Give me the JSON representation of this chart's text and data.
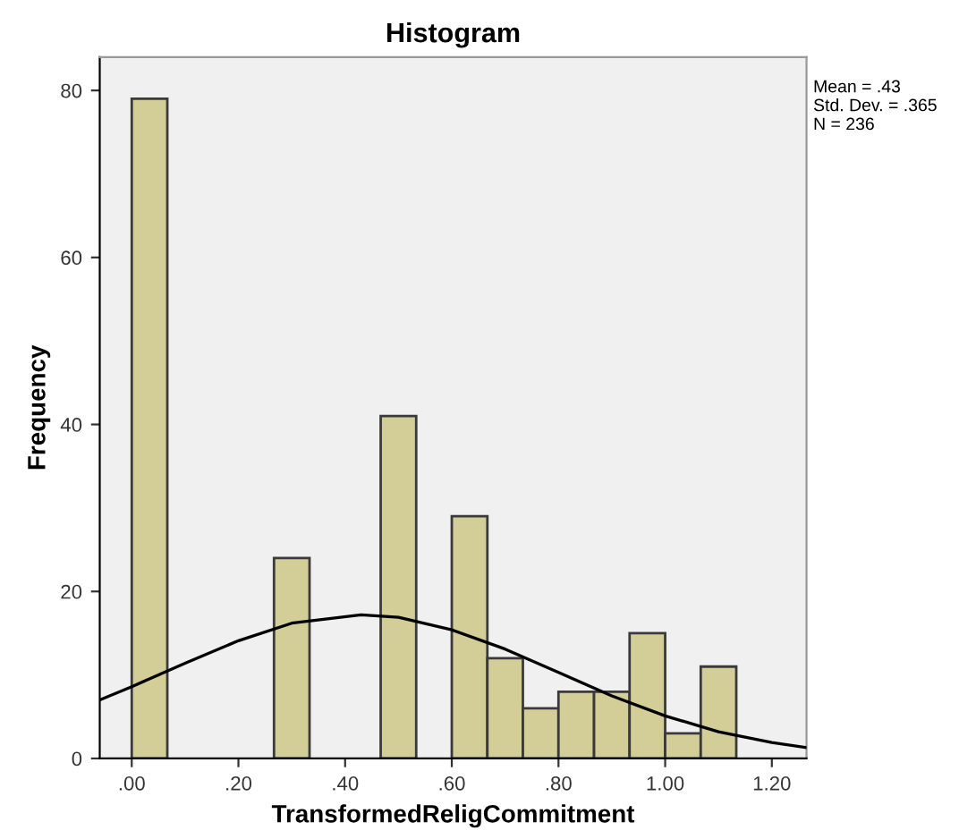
{
  "chart_data": {
    "type": "histogram",
    "title": "Histogram",
    "xlabel": "TransformedReligCommitment",
    "ylabel": "Frequency",
    "bins": [
      0,
      0.0667,
      0.1333,
      0.2,
      0.2667,
      0.3333,
      0.4,
      0.4667,
      0.5333,
      0.6,
      0.6667,
      0.7333,
      0.8,
      0.8667,
      0.9333,
      1.0,
      1.0667,
      1.1333
    ],
    "values": [
      79,
      0,
      0,
      0,
      24,
      0,
      0,
      41,
      0,
      29,
      12,
      6,
      8,
      8,
      15,
      3,
      11
    ],
    "color": "#d3ce97",
    "series": [
      {
        "type": "line",
        "color": "#000000",
        "x": [
          -0.06,
          0.0,
          0.1,
          0.2,
          0.3,
          0.43,
          0.5,
          0.6,
          0.7,
          0.8,
          0.9,
          1.0,
          1.1,
          1.2,
          1.265
        ],
        "values": [
          7.0,
          8.6,
          11.4,
          14.1,
          16.2,
          17.2,
          16.9,
          15.4,
          13.1,
          10.3,
          7.5,
          5.1,
          3.2,
          1.9,
          1.3
        ]
      }
    ],
    "xlim": [
      -0.06,
      1.265
    ],
    "ylim": [
      0,
      84
    ],
    "xticks": [
      {
        "value": 0,
        "label": ".00"
      },
      {
        "value": 0.2,
        "label": ".20"
      },
      {
        "value": 0.4,
        "label": ".40"
      },
      {
        "value": 0.6,
        "label": ".60"
      },
      {
        "value": 0.8,
        "label": ".80"
      },
      {
        "value": 1.0,
        "label": "1.00"
      },
      {
        "value": 1.2,
        "label": "1.20"
      }
    ],
    "yticks": [
      0,
      20,
      40,
      60,
      80
    ],
    "annotations": [
      "Mean = .43\nStd. Dev. = .365\nN = 236"
    ],
    "grid": false,
    "legend": false
  }
}
